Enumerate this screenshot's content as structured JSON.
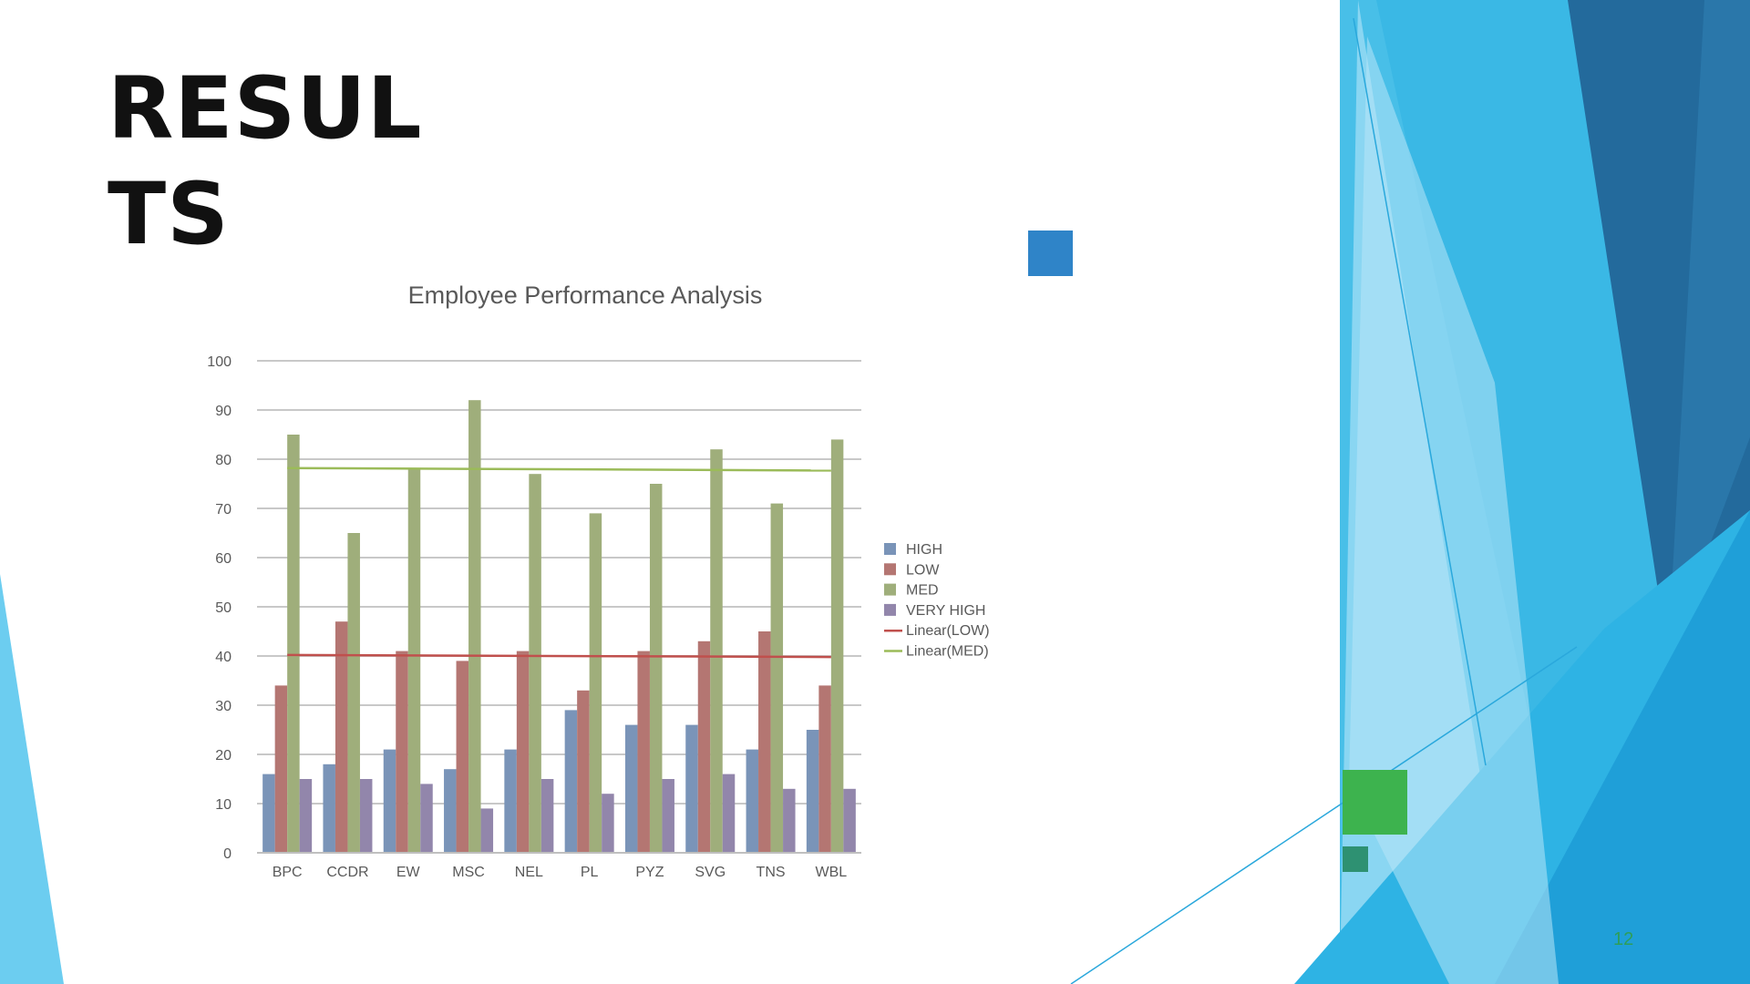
{
  "slide": {
    "title": "RESULTS",
    "page_number": "12",
    "colors": {
      "blue_square": "#2f84c8",
      "green_square": "#3db34e",
      "teal_square": "#2e9172",
      "accent_light": "#7fd1ef",
      "accent_mid": "#3bb9e6",
      "accent_dark": "#236a9c"
    }
  },
  "chart_data": {
    "type": "bar",
    "title": "Employee Performance Analysis",
    "xlabel": "",
    "ylabel": "",
    "ylim": [
      0,
      100
    ],
    "yticks": [
      0,
      10,
      20,
      30,
      40,
      50,
      60,
      70,
      80,
      90,
      100
    ],
    "grid": true,
    "legend_position": "right",
    "categories": [
      "BPC",
      "CCDR",
      "EW",
      "MSC",
      "NEL",
      "PL",
      "PYZ",
      "SVG",
      "TNS",
      "WBL"
    ],
    "series": [
      {
        "name": "HIGH",
        "color": "#7a94b8",
        "values": [
          16,
          18,
          21,
          17,
          21,
          29,
          26,
          26,
          21,
          25
        ]
      },
      {
        "name": "LOW",
        "color": "#b47672",
        "values": [
          34,
          47,
          41,
          39,
          41,
          33,
          41,
          43,
          45,
          34
        ]
      },
      {
        "name": "MED",
        "color": "#9fae7b",
        "values": [
          85,
          65,
          78,
          92,
          77,
          69,
          75,
          82,
          71,
          84
        ]
      },
      {
        "name": "VERY HIGH",
        "color": "#9286ab",
        "values": [
          15,
          15,
          14,
          9,
          15,
          12,
          15,
          16,
          13,
          13
        ]
      }
    ],
    "trendlines": [
      {
        "name": "Linear(LOW)",
        "color": "#c0504d",
        "start": 40.2,
        "end": 39.8
      },
      {
        "name": "Linear(MED)",
        "color": "#9bbb59",
        "start": 78.2,
        "end": 77.7
      }
    ]
  }
}
